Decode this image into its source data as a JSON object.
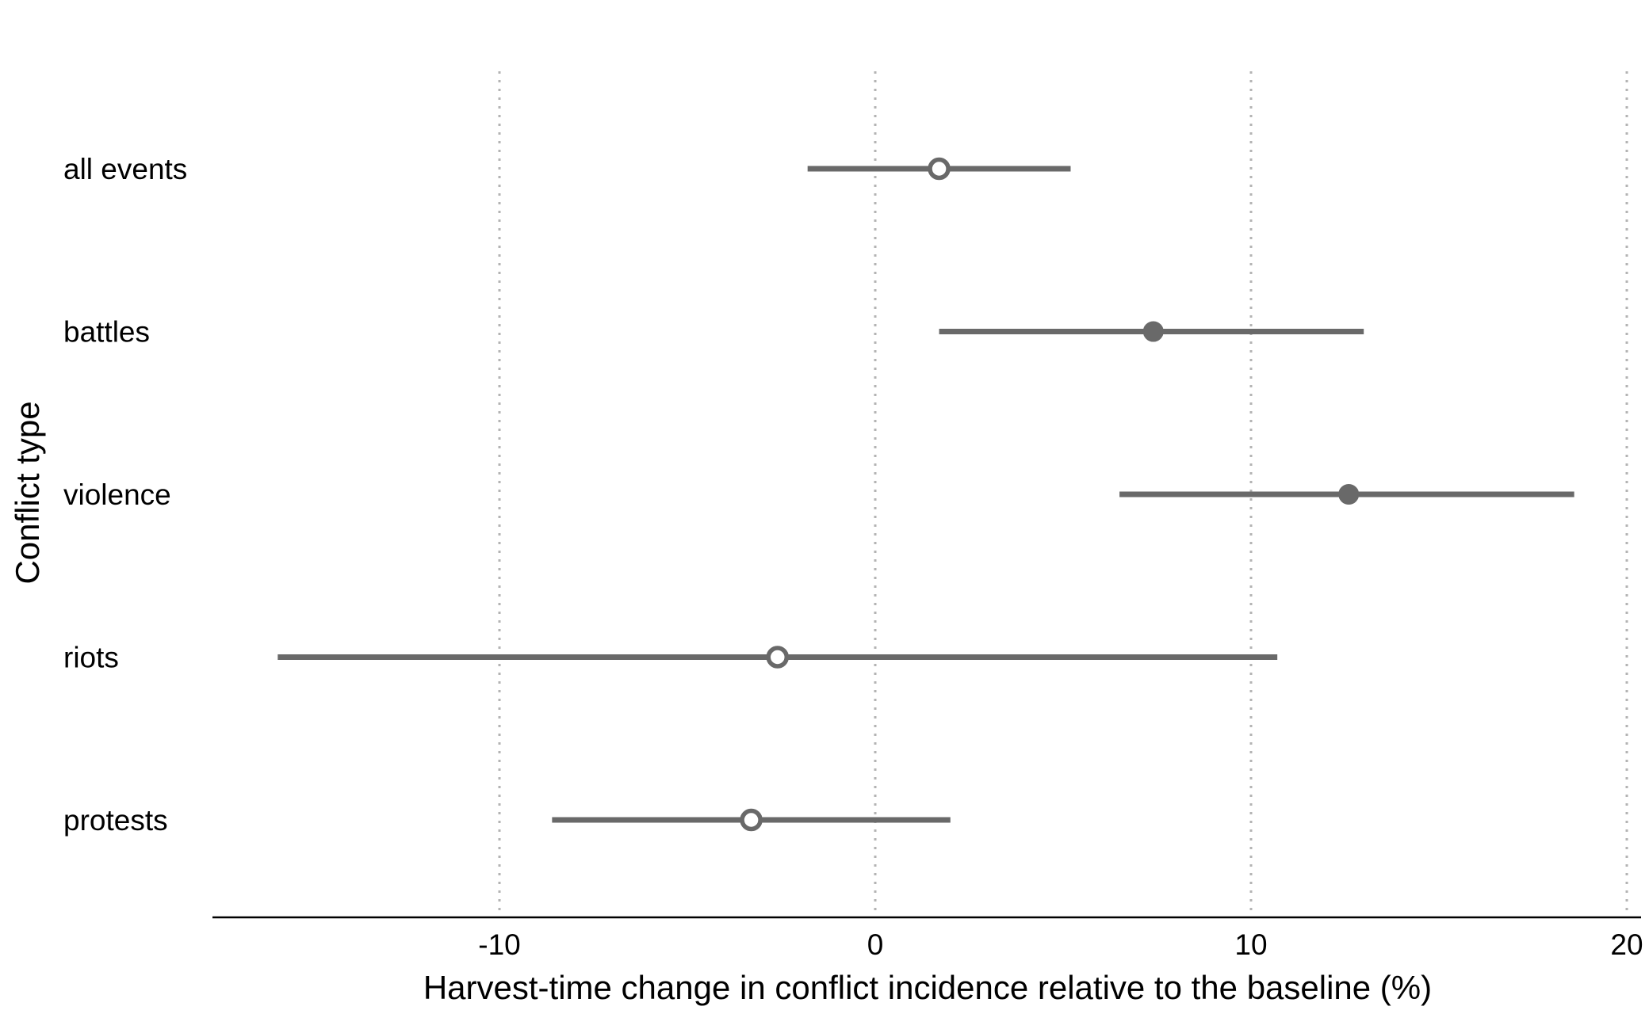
{
  "chart_data": {
    "type": "scatter",
    "subtype": "point-range",
    "orientation": "horizontal",
    "title": "",
    "xlabel": "Harvest-time change in conflict incidence relative to the baseline (%)",
    "ylabel": "Conflict type",
    "xlim": [
      -17.7,
      20.4
    ],
    "x_ticks": [
      -10,
      0,
      10,
      20
    ],
    "x_tick_labels": [
      "-10",
      "0",
      "10",
      "20"
    ],
    "grid": "vertical dotted at x ticks",
    "legend": "none",
    "categories": [
      "all events",
      "battles",
      "violence",
      "riots",
      "protests"
    ],
    "series": [
      {
        "points": [
          {
            "category": "all events",
            "estimate": 1.7,
            "ci_low": -1.8,
            "ci_high": 5.2,
            "significant": false
          },
          {
            "category": "battles",
            "estimate": 7.4,
            "ci_low": 1.7,
            "ci_high": 13.0,
            "significant": true
          },
          {
            "category": "violence",
            "estimate": 12.6,
            "ci_low": 6.5,
            "ci_high": 18.6,
            "significant": true
          },
          {
            "category": "riots",
            "estimate": -2.6,
            "ci_low": -15.9,
            "ci_high": 10.7,
            "significant": false
          },
          {
            "category": "protests",
            "estimate": -3.3,
            "ci_low": -8.6,
            "ci_high": 2.0,
            "significant": false
          }
        ]
      }
    ],
    "colors": {
      "marker": "#696969",
      "open_marker_fill": "#ffffff",
      "gridline": "#b3b3b3",
      "axis": "#000000"
    }
  }
}
